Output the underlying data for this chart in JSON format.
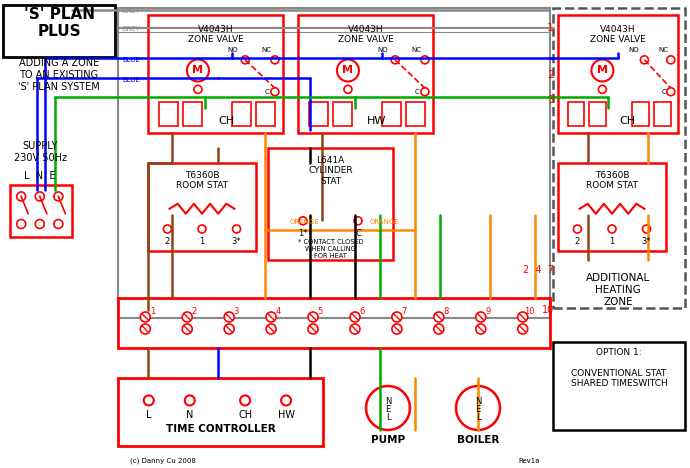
{
  "title": "'S' PLAN\nPLUS",
  "subtitle": "ADDING A ZONE\nTO AN EXISTING\n'S' PLAN SYSTEM",
  "bg_color": "#ffffff",
  "colors": {
    "red": "#ff0000",
    "blue": "#0000ff",
    "green": "#00aa00",
    "orange": "#ff8800",
    "brown": "#8B4513",
    "grey": "#888888",
    "black": "#000000"
  },
  "option_text": "OPTION 1:\n\nCONVENTIONAL STAT\nSHARED TIMESWITCH",
  "add_zone_label": "ADDITIONAL\nHEATING\nZONE",
  "copyright": "(c) Danny Cu 2008",
  "rev": "Rev1a"
}
